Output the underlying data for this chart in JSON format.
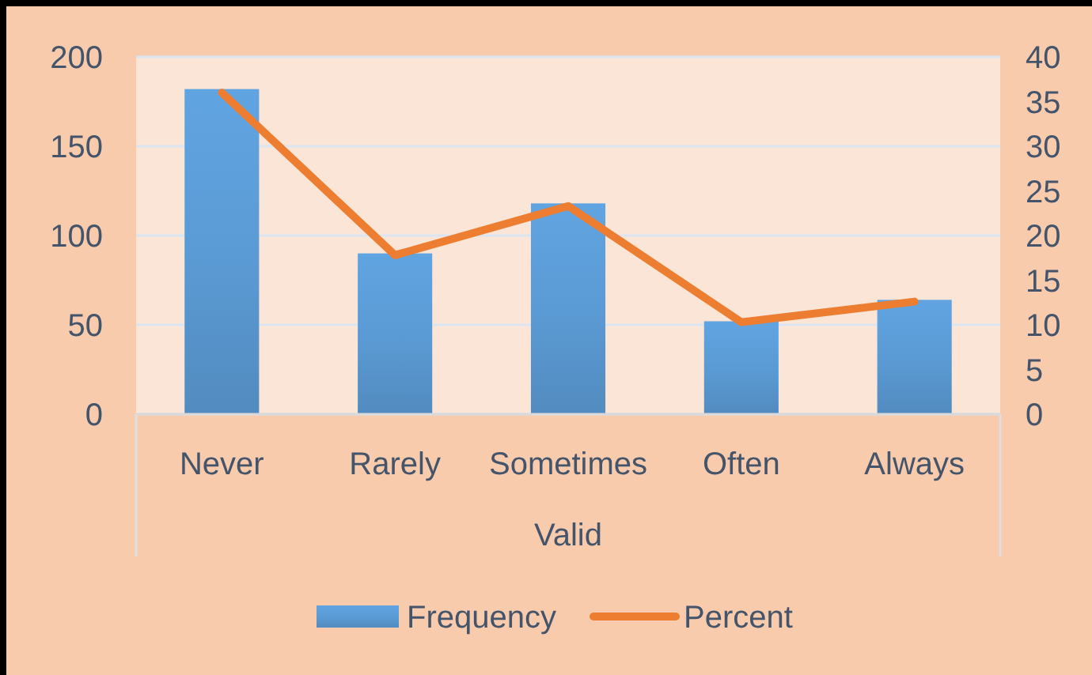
{
  "chart_data": {
    "type": "bar",
    "xlabel": "Valid",
    "categories": [
      "Never",
      "Rarely",
      "Sometimes",
      "Often",
      "Always"
    ],
    "series": [
      {
        "name": "Frequency",
        "color": "#5b9bd5",
        "values": [
          182,
          90,
          118,
          52,
          64
        ]
      },
      {
        "name": "Percent",
        "type": "line",
        "axis": "y2",
        "color": "#ed7d31",
        "values": [
          36.0,
          17.8,
          23.3,
          10.3,
          12.6
        ]
      }
    ],
    "ylim": [
      0,
      200
    ],
    "yticks": [
      0,
      50,
      100,
      150,
      200
    ],
    "y2lim": [
      0,
      40
    ],
    "y2ticks": [
      0,
      5,
      10,
      15,
      20,
      25,
      30,
      35,
      40
    ],
    "grid": "y",
    "legend": "bottom"
  }
}
